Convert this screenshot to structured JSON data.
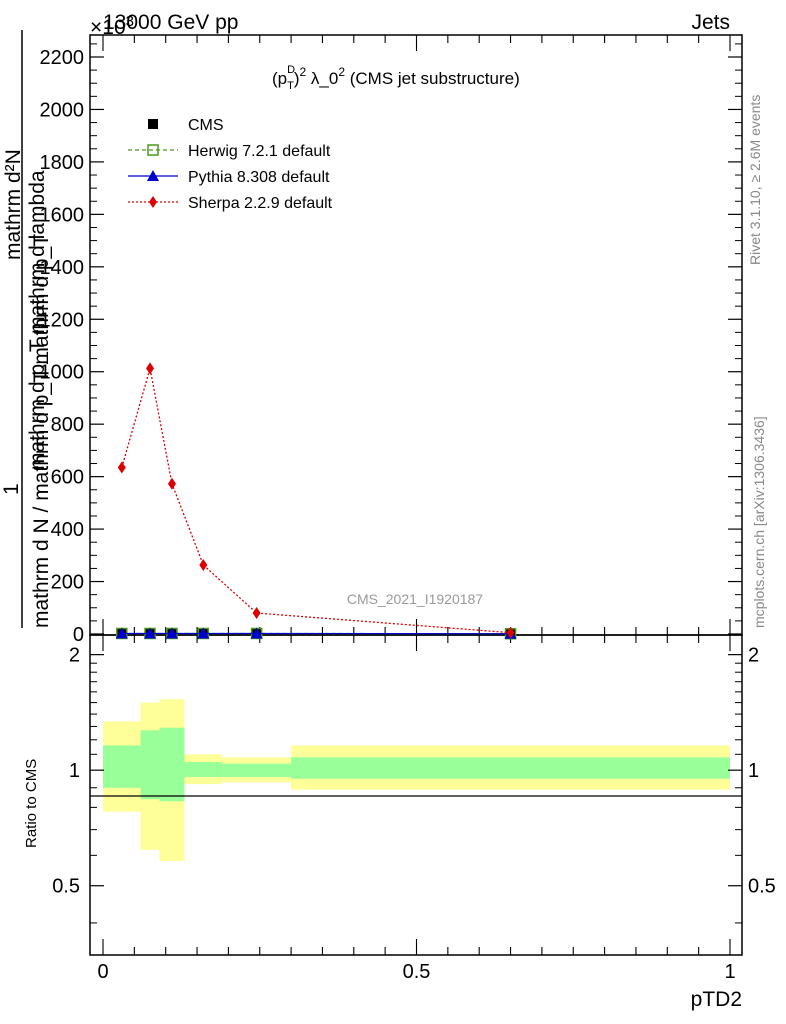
{
  "header": {
    "energy": "13000 GeV pp",
    "process": "Jets",
    "exponent": "×10",
    "exponent_power": "3",
    "analysis_id": "CMS_2021_I1920187",
    "rivet": "Rivet 3.1.10, ≥ 2.6M events",
    "mcplots": "mcplots.cern.ch [arXiv:1306.3436]"
  },
  "plot_title": "(p_T^D)^2 λ_0^2 (CMS jet substructure)",
  "plot_title_parts": {
    "p": "(p",
    "sup": "D",
    "sub": "T",
    "close": ")",
    "pow": "2",
    "lambda": " λ_0",
    "lpow": "2",
    "rest": " (CMS jet substructure)"
  },
  "ylabel_main": {
    "numerator": "mathrm d²N",
    "numerator_line2": "mathrm d p_T mathrm d lambda",
    "one": "1",
    "denominator": "mathrm d N / mathrm d p_T mathrm d p_T"
  },
  "ylabel_ratio": "Ratio to CMS",
  "xlabel": "pTD2",
  "legend": [
    {
      "label": "CMS",
      "color": "#000000",
      "marker": "square-filled",
      "line": "none"
    },
    {
      "label": "Herwig 7.2.1 default",
      "color": "#4a9a1a",
      "marker": "square-open",
      "line": "dashed"
    },
    {
      "label": "Pythia 8.308 default",
      "color": "#0000cc",
      "marker": "triangle",
      "line": "solid"
    },
    {
      "label": "Sherpa 2.2.9 default",
      "color": "#dd0000",
      "marker": "diamond",
      "line": "dotted"
    }
  ],
  "chart_data": {
    "type": "line",
    "xlabel": "pTD2",
    "xlim": [
      0,
      1
    ],
    "xticks": [
      0,
      0.5,
      1
    ],
    "xtick_labels": [
      "0",
      "0.5",
      "1"
    ],
    "main": {
      "ylim": [
        0,
        2280
      ],
      "yticks": [
        0,
        200,
        400,
        600,
        800,
        1000,
        1200,
        1400,
        1600,
        1800,
        2000,
        2200
      ],
      "ytick_labels": [
        "0",
        "200",
        "400",
        "600",
        "800",
        "1000",
        "1200",
        "1400",
        "1600",
        "1800",
        "2000",
        "2200"
      ],
      "y_multiplier": "×10^3",
      "series": [
        {
          "name": "CMS",
          "x": [
            0.03,
            0.075,
            0.11,
            0.16,
            0.245,
            0.65
          ],
          "y": [
            2,
            2,
            2,
            2,
            2,
            1
          ]
        },
        {
          "name": "Herwig 7.2.1 default",
          "x": [
            0.03,
            0.075,
            0.11,
            0.16,
            0.245,
            0.65
          ],
          "y": [
            2,
            2,
            2,
            2,
            2,
            1
          ]
        },
        {
          "name": "Pythia 8.308 default",
          "x": [
            0.03,
            0.075,
            0.11,
            0.16,
            0.245,
            0.65
          ],
          "y": [
            2,
            2,
            2,
            2,
            2,
            1
          ]
        },
        {
          "name": "Sherpa 2.2.9 default",
          "x": [
            0.03,
            0.075,
            0.11,
            0.16,
            0.245,
            0.65
          ],
          "y": [
            635,
            1013,
            573,
            263,
            80,
            5
          ]
        }
      ]
    },
    "ratio": {
      "ylim": [
        0.33,
        2.25
      ],
      "yticks": [
        0.5,
        1,
        2
      ],
      "ytick_labels": [
        "0.5",
        "1",
        "2"
      ],
      "ylabel": "Ratio to CMS",
      "reference": 1,
      "bins": [
        {
          "xlo": 0.0,
          "xhi": 0.06,
          "inner": [
            0.9,
            1.16
          ],
          "outer": [
            0.78,
            1.34
          ]
        },
        {
          "xlo": 0.06,
          "xhi": 0.09,
          "inner": [
            0.84,
            1.27
          ],
          "outer": [
            0.62,
            1.5
          ]
        },
        {
          "xlo": 0.09,
          "xhi": 0.13,
          "inner": [
            0.83,
            1.29
          ],
          "outer": [
            0.58,
            1.53
          ]
        },
        {
          "xlo": 0.13,
          "xhi": 0.19,
          "inner": [
            0.96,
            1.05
          ],
          "outer": [
            0.92,
            1.1
          ]
        },
        {
          "xlo": 0.19,
          "xhi": 0.3,
          "inner": [
            0.96,
            1.04
          ],
          "outer": [
            0.93,
            1.08
          ]
        },
        {
          "xlo": 0.3,
          "xhi": 1.0,
          "inner": [
            0.95,
            1.08
          ],
          "outer": [
            0.89,
            1.16
          ]
        }
      ]
    }
  }
}
